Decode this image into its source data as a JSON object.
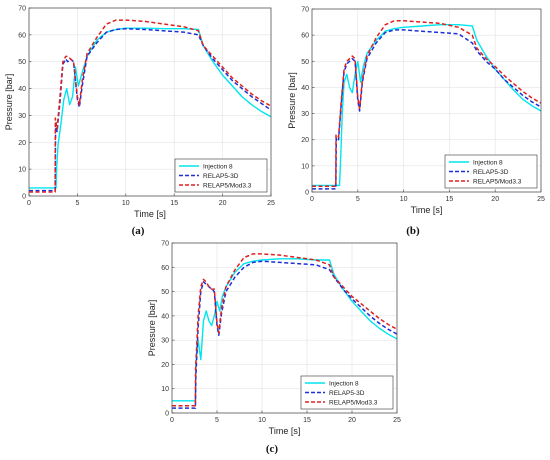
{
  "chart_data": [
    {
      "type": "line",
      "panel_label": "(a)",
      "xlabel": "Time [s]",
      "ylabel": "Pressure [bar]",
      "xlim": [
        0,
        25
      ],
      "ylim": [
        0,
        70
      ],
      "xticks": [
        0,
        5,
        10,
        15,
        20,
        25
      ],
      "yticks": [
        0,
        10,
        20,
        30,
        40,
        50,
        60,
        70
      ],
      "grid": true,
      "legend_position": "bottom-right",
      "series": [
        {
          "name": "Injection 8",
          "color": "#00e5ee",
          "style": "solid",
          "x": [
            0,
            2.8,
            2.85,
            3.0,
            3.3,
            3.6,
            3.9,
            4.2,
            4.5,
            4.8,
            5.1,
            5.5,
            6,
            7,
            8,
            9,
            10,
            12,
            14,
            16,
            17.5,
            18,
            19,
            20,
            21,
            22,
            23,
            24,
            25
          ],
          "y": [
            3,
            3,
            10,
            19,
            27,
            36,
            40,
            34,
            37,
            48,
            41,
            46,
            52,
            58,
            61,
            62,
            62.5,
            62.5,
            62.3,
            62.3,
            62,
            56,
            50,
            45,
            41,
            37,
            34,
            31.5,
            29.5
          ]
        },
        {
          "name": "RELAP5-3D",
          "color": "#1f2fd6",
          "style": "dashed",
          "x": [
            0,
            2.7,
            2.75,
            2.9,
            3.2,
            3.5,
            3.8,
            4.0,
            4.3,
            4.6,
            5.0,
            5.2,
            5.5,
            6,
            7,
            8,
            9,
            10,
            12,
            14,
            16,
            17.5,
            18,
            19,
            20,
            21,
            22,
            23,
            24,
            25
          ],
          "y": [
            2,
            2,
            27,
            24,
            35,
            49,
            51,
            50,
            51,
            50,
            36,
            33,
            41,
            52,
            57,
            61,
            62,
            62.3,
            62,
            61.5,
            61,
            60,
            56,
            51,
            47,
            43,
            40,
            37,
            34.5,
            32
          ]
        },
        {
          "name": "RELAP5/Mod3.3",
          "color": "#e02020",
          "style": "dashed",
          "x": [
            0,
            2.7,
            2.72,
            2.9,
            3.2,
            3.5,
            3.8,
            4.0,
            4.3,
            4.6,
            5.0,
            5.2,
            5.5,
            6,
            7,
            8,
            9,
            10,
            12,
            14,
            16,
            17.5,
            18,
            19,
            20,
            21,
            22,
            23,
            24,
            25
          ],
          "y": [
            1.5,
            1.5,
            29,
            25,
            37,
            50,
            52,
            52,
            51,
            50,
            37,
            34,
            43,
            53,
            59,
            64,
            65.5,
            65.5,
            65,
            64,
            63,
            61.5,
            56,
            52,
            48,
            44,
            41,
            38,
            35.5,
            33.5
          ]
        }
      ]
    },
    {
      "type": "line",
      "panel_label": "(b)",
      "xlabel": "Time [s]",
      "ylabel": "Pressure [bar]",
      "xlim": [
        0,
        25
      ],
      "ylim": [
        0,
        70
      ],
      "xticks": [
        0,
        5,
        10,
        15,
        20,
        25
      ],
      "yticks": [
        0,
        10,
        20,
        30,
        40,
        50,
        60,
        70
      ],
      "grid": true,
      "legend_position": "bottom-right",
      "series": [
        {
          "name": "Injection 8",
          "color": "#00e5ee",
          "style": "solid",
          "x": [
            0,
            3.0,
            3.1,
            3.3,
            3.5,
            3.8,
            4.1,
            4.4,
            4.7,
            5.0,
            5.3,
            5.6,
            6,
            7,
            8,
            9,
            10,
            12,
            14,
            16,
            17.5,
            18,
            19,
            20,
            21,
            22,
            23,
            24,
            25
          ],
          "y": [
            2.5,
            2.5,
            10,
            30,
            42,
            45,
            40,
            38,
            45,
            50,
            42,
            48,
            53,
            58,
            61.5,
            62.5,
            63,
            63.5,
            64,
            64,
            63.5,
            58,
            52,
            47,
            43,
            39,
            35.5,
            33,
            31
          ]
        },
        {
          "name": "RELAP5-3D",
          "color": "#1f2fd6",
          "style": "dashed",
          "x": [
            0,
            2.6,
            2.65,
            2.9,
            3.2,
            3.5,
            3.8,
            4.1,
            4.4,
            4.7,
            5.0,
            5.2,
            5.5,
            6,
            7,
            8,
            9,
            10,
            12,
            14,
            16,
            17.5,
            18,
            19,
            20,
            21,
            22,
            23,
            24,
            25
          ],
          "y": [
            1.2,
            1.2,
            21,
            20,
            34,
            46,
            49,
            50,
            51,
            50,
            35,
            31,
            42,
            51,
            57,
            61,
            62,
            62,
            61.5,
            61,
            60.5,
            57,
            54,
            50,
            47,
            43,
            40,
            37,
            34.5,
            32.5
          ]
        },
        {
          "name": "RELAP5/Mod3.3",
          "color": "#e02020",
          "style": "dashed",
          "x": [
            0,
            2.6,
            2.62,
            2.9,
            3.2,
            3.5,
            3.8,
            4.1,
            4.4,
            4.7,
            5.0,
            5.2,
            5.5,
            6,
            7,
            8,
            9,
            10,
            12,
            14,
            16,
            17.5,
            18,
            19,
            20,
            21,
            22,
            23,
            24,
            25
          ],
          "y": [
            2.2,
            2.2,
            22,
            21,
            35,
            47,
            50,
            51,
            52,
            51,
            36,
            32,
            43,
            52,
            59,
            64,
            65.5,
            65.5,
            65,
            64.5,
            63,
            60,
            55,
            51,
            48,
            44.5,
            41.5,
            38.5,
            36,
            34
          ]
        }
      ]
    },
    {
      "type": "line",
      "panel_label": "(c)",
      "xlabel": "Time [s]",
      "ylabel": "Pressure [bar]",
      "xlim": [
        0,
        25
      ],
      "ylim": [
        0,
        70
      ],
      "xticks": [
        0,
        5,
        10,
        15,
        20,
        25
      ],
      "yticks": [
        0,
        10,
        20,
        30,
        40,
        50,
        60,
        70
      ],
      "grid": true,
      "legend_position": "bottom-right",
      "series": [
        {
          "name": "Injection 8",
          "color": "#00e5ee",
          "style": "solid",
          "x": [
            0,
            2.6,
            2.65,
            2.9,
            3.2,
            3.5,
            3.8,
            4.1,
            4.4,
            4.7,
            5.0,
            5.3,
            5.6,
            6,
            7,
            8,
            9,
            10,
            12,
            14,
            16,
            17.5,
            18,
            19,
            20,
            21,
            22,
            23,
            24,
            25
          ],
          "y": [
            5,
            5,
            20,
            30,
            22,
            38,
            42,
            38,
            36,
            40,
            46,
            42,
            48,
            52,
            58,
            61.5,
            62.5,
            63,
            63.5,
            63.5,
            63,
            63,
            57,
            51,
            46,
            42,
            38,
            35,
            32.5,
            30.5
          ]
        },
        {
          "name": "RELAP5-3D",
          "color": "#1f2fd6",
          "style": "dashed",
          "x": [
            0,
            2.6,
            2.65,
            2.9,
            3.2,
            3.5,
            3.8,
            4.1,
            4.4,
            4.7,
            5.0,
            5.2,
            5.5,
            6,
            7,
            8,
            9,
            10,
            12,
            14,
            16,
            17.5,
            18,
            19,
            20,
            21,
            22,
            23,
            24,
            25
          ],
          "y": [
            2,
            2,
            15,
            35,
            50,
            54,
            53,
            52,
            51,
            50,
            36,
            32,
            41,
            50,
            56,
            60,
            62,
            62.5,
            62,
            61.5,
            61,
            59,
            56,
            51,
            47,
            43.5,
            40,
            37,
            34.5,
            32.5
          ]
        },
        {
          "name": "RELAP5/Mod3.3",
          "color": "#e02020",
          "style": "dashed",
          "x": [
            0,
            2.6,
            2.62,
            2.9,
            3.2,
            3.5,
            3.8,
            4.1,
            4.4,
            4.7,
            5.0,
            5.2,
            5.5,
            6,
            7,
            8,
            9,
            10,
            12,
            14,
            16,
            17.5,
            18,
            19,
            20,
            21,
            22,
            23,
            24,
            25
          ],
          "y": [
            3,
            3,
            18,
            40,
            52,
            55,
            54,
            52,
            51,
            51,
            37,
            33,
            43,
            52,
            59,
            64,
            65.5,
            65.5,
            65,
            64,
            63,
            61,
            56,
            52,
            48,
            45,
            42,
            39,
            36.5,
            34.5
          ]
        }
      ]
    }
  ]
}
